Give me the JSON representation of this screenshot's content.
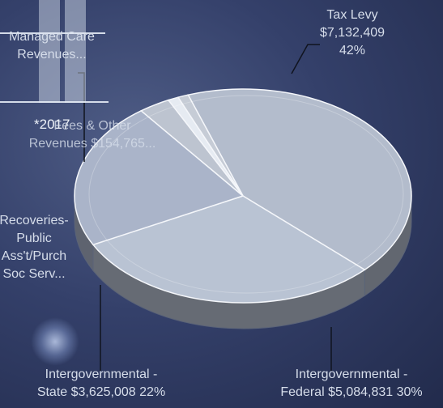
{
  "chart_data": {
    "type": "pie",
    "title": "",
    "slices": [
      {
        "label_lines": [
          "Tax Levy",
          "$7,132,409",
          "42%"
        ],
        "percent": 42,
        "color": "#b3bccc"
      },
      {
        "label_lines": [
          "Intergovernmental -",
          "Federal $5,084,831 30%"
        ],
        "percent": 30,
        "color": "#b9c3d3"
      },
      {
        "label_lines": [
          "Intergovernmental -",
          "State $3,625,008 22%"
        ],
        "percent": 22,
        "color": "#aab4c9"
      },
      {
        "label_lines": [
          "Recoveries-",
          "Public",
          "Ass't/Purch",
          "Soc Serv..."
        ],
        "percent": 3,
        "color": "#bdc4d0"
      },
      {
        "label_lines": [
          "Fees & Other",
          "Revenues $154,765..."
        ],
        "percent": 1,
        "color": "#e6ebf2"
      },
      {
        "label_lines": [
          "Managed Care",
          "Revenues..."
        ],
        "percent": 1,
        "color": "#c6ccd6"
      }
    ],
    "overlay_text": "*2017"
  }
}
